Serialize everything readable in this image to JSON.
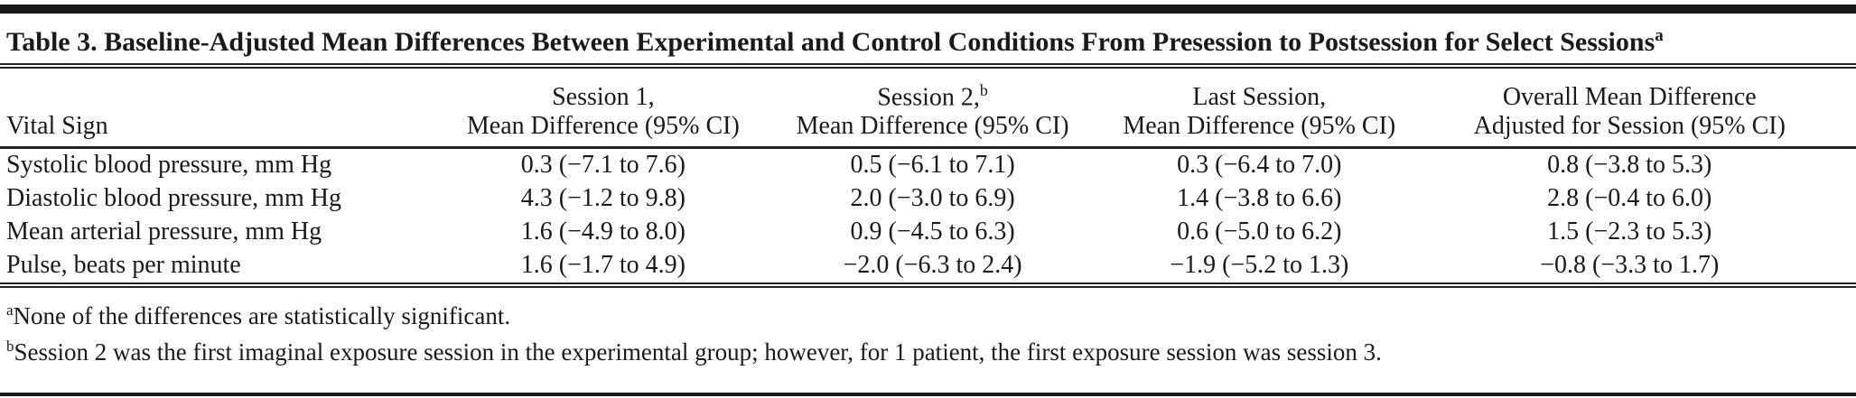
{
  "table": {
    "title": "Table 3. Baseline-Adjusted Mean Differences Between Experimental and Control Conditions From Presession to Postsession for Select Sessions",
    "title_superscript": "a",
    "columns": [
      {
        "line1": "",
        "line2": "Vital Sign"
      },
      {
        "line1": "Session 1,",
        "line2": "Mean Difference (95% CI)"
      },
      {
        "line1": "Session 2,",
        "sup": "b",
        "line2": "Mean Difference (95% CI)"
      },
      {
        "line1": "Last Session,",
        "line2": "Mean Difference (95% CI)"
      },
      {
        "line1": "Overall Mean Difference",
        "line2": "Adjusted for Session (95% CI)"
      }
    ],
    "rows": [
      {
        "label": "Systolic blood pressure, mm Hg",
        "session1": "0.3 (−7.1 to 7.6)",
        "session2": "0.5 (−6.1 to 7.1)",
        "last_session": "0.3 (−6.4 to 7.0)",
        "overall": "0.8 (−3.8 to 5.3)"
      },
      {
        "label": "Diastolic blood pressure, mm Hg",
        "session1": "4.3 (−1.2 to 9.8)",
        "session2": "2.0 (−3.0 to 6.9)",
        "last_session": "1.4 (−3.8 to 6.6)",
        "overall": "2.8 (−0.4 to 6.0)"
      },
      {
        "label": "Mean arterial pressure, mm Hg",
        "session1": "1.6 (−4.9 to 8.0)",
        "session2": "0.9 (−4.5 to 6.3)",
        "last_session": "0.6 (−5.0 to 6.2)",
        "overall": "1.5 (−2.3 to 5.3)"
      },
      {
        "label": "Pulse, beats per minute",
        "session1": "1.6 (−1.7 to 4.9)",
        "session2": "−2.0 (−6.3 to 2.4)",
        "last_session": "−1.9 (−5.2 to 1.3)",
        "overall": "−0.8 (−3.3 to 1.7)"
      }
    ],
    "footnotes": [
      {
        "marker": "a",
        "text": "None of the differences are statistically significant."
      },
      {
        "marker": "b",
        "text": "Session 2 was the first imaginal exposure session in the experimental group; however, for 1 patient, the first exposure session was session 3."
      }
    ]
  }
}
